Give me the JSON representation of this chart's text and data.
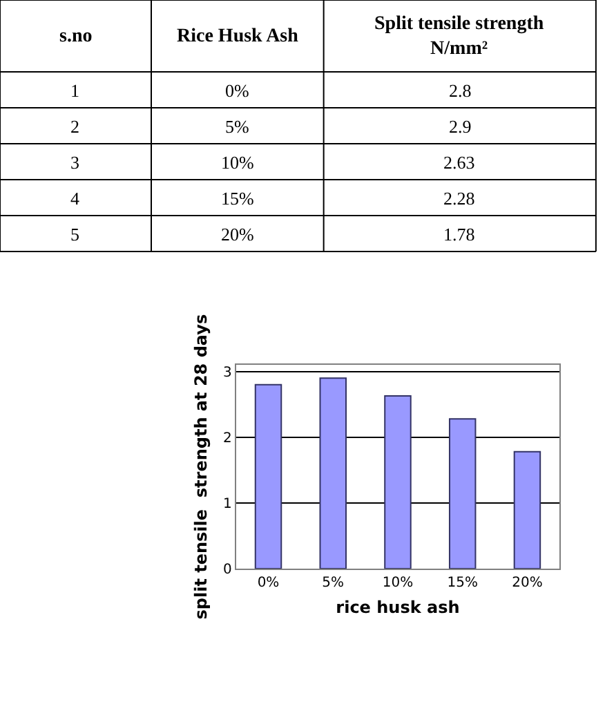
{
  "chart_data": {
    "type": "bar",
    "categories": [
      "0%",
      "5%",
      "10%",
      "15%",
      "20%"
    ],
    "values": [
      2.8,
      2.9,
      2.63,
      2.28,
      1.78
    ],
    "color": "#9999ff",
    "xlabel": "rice husk ash",
    "ylabel": "split tensile  strength at 28 days",
    "ylim": [
      0,
      3.1
    ],
    "yticks": [
      0,
      1,
      2,
      3
    ],
    "grid": "y",
    "legend": false,
    "annotations": [
      "s.no",
      "Rice Husk Ash",
      "Split tensile strength N/mm²",
      "1",
      "2",
      "3",
      "4",
      "5",
      "2.8",
      "2.9",
      "2.63",
      "2.28",
      "1.78"
    ]
  }
}
